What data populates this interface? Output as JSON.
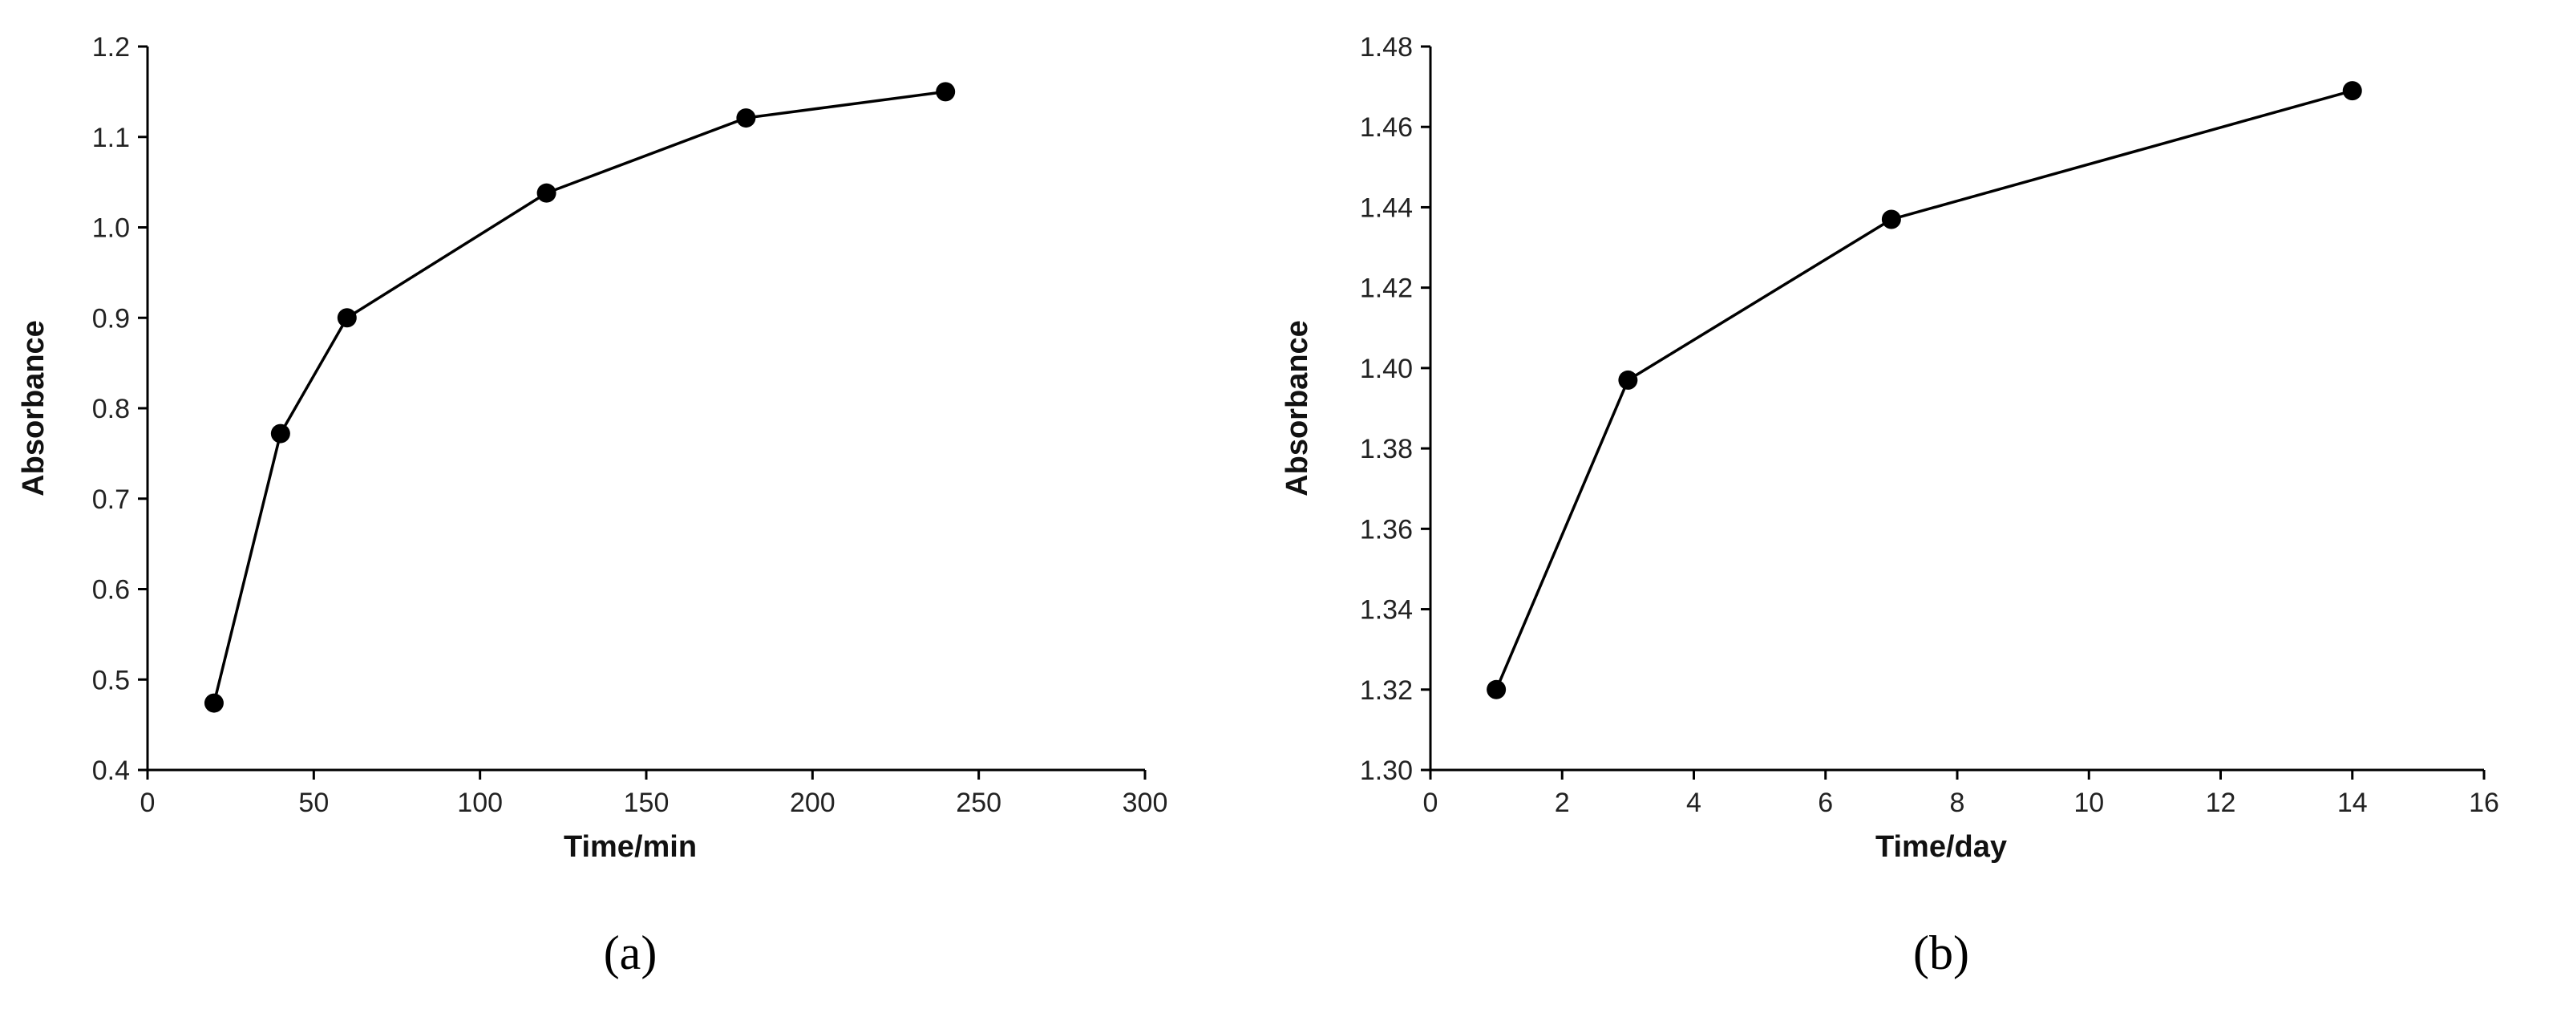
{
  "chart_data": [
    {
      "type": "line",
      "panel_label": "(a)",
      "xlabel": "Time/min",
      "ylabel": "Absorbance",
      "xlim": [
        0,
        300
      ],
      "ylim": [
        0.4,
        1.2
      ],
      "xticks": [
        0,
        50,
        100,
        150,
        200,
        250,
        300
      ],
      "yticks": [
        0.4,
        0.5,
        0.6,
        0.7,
        0.8,
        0.9,
        1.0,
        1.1,
        1.2
      ],
      "xtick_labels": [
        "0",
        "50",
        "100",
        "150",
        "200",
        "250",
        "300"
      ],
      "ytick_labels": [
        "0.4",
        "0.5",
        "0.6",
        "0.7",
        "0.8",
        "0.9",
        "1.0",
        "1.1",
        "1.2"
      ],
      "grid": false,
      "x": [
        20,
        40,
        60,
        120,
        180,
        240
      ],
      "y": [
        0.474,
        0.772,
        0.9,
        1.038,
        1.121,
        1.15
      ]
    },
    {
      "type": "line",
      "panel_label": "(b)",
      "xlabel": "Time/day",
      "ylabel": "Absorbance",
      "xlim": [
        0,
        16
      ],
      "ylim": [
        1.3,
        1.48
      ],
      "xticks": [
        0,
        2,
        4,
        6,
        8,
        10,
        12,
        14,
        16
      ],
      "yticks": [
        1.3,
        1.32,
        1.34,
        1.36,
        1.38,
        1.4,
        1.42,
        1.44,
        1.46,
        1.48
      ],
      "xtick_labels": [
        "0",
        "2",
        "4",
        "6",
        "8",
        "10",
        "12",
        "14",
        "16"
      ],
      "ytick_labels": [
        "1.30",
        "1.32",
        "1.34",
        "1.36",
        "1.38",
        "1.40",
        "1.42",
        "1.44",
        "1.46",
        "1.48"
      ],
      "grid": false,
      "x": [
        1,
        3,
        7,
        14
      ],
      "y": [
        1.32,
        1.397,
        1.437,
        1.469
      ]
    }
  ]
}
